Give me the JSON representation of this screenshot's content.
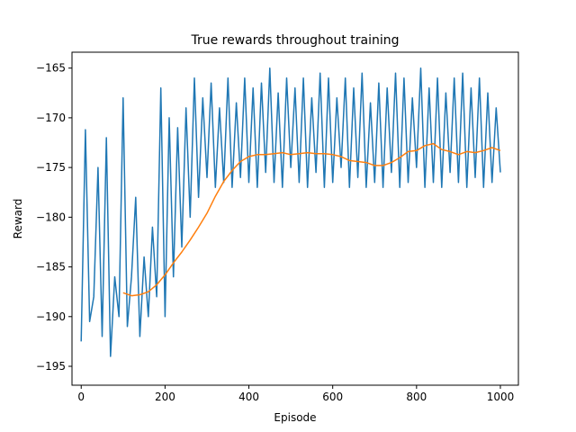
{
  "chart_data": {
    "type": "line",
    "title": "True rewards throughout training",
    "xlabel": "Episode",
    "ylabel": "Reward",
    "xlim": [
      -22,
      1043
    ],
    "ylim": [
      -196.9,
      -163.4
    ],
    "xticks": [
      0,
      200,
      400,
      600,
      800,
      1000
    ],
    "yticks": [
      -195,
      -190,
      -185,
      -180,
      -175,
      -170,
      -165
    ],
    "grid": false,
    "legend": "none",
    "series": [
      {
        "color": "#1f77b4",
        "note_values": "per-episode reward, sampled every 10 episodes (the raw trace oscillates heavily between these envelope points)",
        "x": [
          0,
          10,
          20,
          30,
          40,
          50,
          60,
          70,
          80,
          90,
          100,
          110,
          120,
          130,
          140,
          150,
          160,
          170,
          180,
          190,
          200,
          210,
          220,
          230,
          240,
          250,
          260,
          270,
          280,
          290,
          300,
          310,
          320,
          330,
          340,
          350,
          360,
          370,
          380,
          390,
          400,
          410,
          420,
          430,
          440,
          450,
          460,
          470,
          480,
          490,
          500,
          510,
          520,
          530,
          540,
          550,
          560,
          570,
          580,
          590,
          600,
          610,
          620,
          630,
          640,
          650,
          660,
          670,
          680,
          690,
          700,
          710,
          720,
          730,
          740,
          750,
          760,
          770,
          780,
          790,
          800,
          810,
          820,
          830,
          840,
          850,
          860,
          870,
          880,
          890,
          900,
          910,
          920,
          930,
          940,
          950,
          960,
          970,
          980,
          990,
          1000
        ],
        "y": [
          -192.5,
          -171.2,
          -190.5,
          -188.0,
          -175.0,
          -192.0,
          -172.0,
          -194.0,
          -186.0,
          -190.0,
          -168.0,
          -191.0,
          -186.0,
          -178.0,
          -192.0,
          -184.0,
          -190.0,
          -181.0,
          -188.0,
          -167.0,
          -190.0,
          -170.0,
          -186.0,
          -171.0,
          -183.0,
          -169.0,
          -180.0,
          -166.0,
          -178.0,
          -168.0,
          -176.0,
          -166.5,
          -177.0,
          -169.0,
          -176.5,
          -166.0,
          -177.0,
          -168.5,
          -176.0,
          -166.0,
          -176.5,
          -167.0,
          -177.0,
          -166.5,
          -175.5,
          -165.0,
          -176.5,
          -167.5,
          -177.0,
          -166.0,
          -175.0,
          -167.0,
          -176.5,
          -166.0,
          -177.0,
          -168.0,
          -175.5,
          -165.5,
          -177.0,
          -166.0,
          -176.5,
          -168.0,
          -175.0,
          -166.0,
          -177.0,
          -167.0,
          -176.0,
          -165.5,
          -177.0,
          -168.5,
          -176.5,
          -166.5,
          -177.0,
          -167.0,
          -175.5,
          -165.5,
          -177.0,
          -166.0,
          -176.5,
          -168.0,
          -175.0,
          -165.0,
          -177.0,
          -167.0,
          -176.5,
          -166.0,
          -177.0,
          -167.5,
          -175.5,
          -166.0,
          -176.5,
          -165.5,
          -177.0,
          -167.0,
          -176.0,
          -166.0,
          -177.0,
          -167.5,
          -176.5,
          -169.0,
          -175.5
        ]
      },
      {
        "color": "#ff7f0e",
        "note_values": "moving average",
        "x": [
          100,
          120,
          140,
          160,
          180,
          200,
          220,
          240,
          260,
          280,
          300,
          320,
          340,
          360,
          380,
          400,
          420,
          440,
          460,
          480,
          500,
          520,
          540,
          560,
          580,
          600,
          620,
          640,
          660,
          680,
          700,
          720,
          740,
          760,
          780,
          800,
          820,
          840,
          860,
          880,
          900,
          920,
          940,
          960,
          980,
          1000
        ],
        "y": [
          -187.6,
          -187.9,
          -187.8,
          -187.5,
          -186.8,
          -185.8,
          -184.6,
          -183.5,
          -182.3,
          -181.0,
          -179.6,
          -177.9,
          -176.4,
          -175.3,
          -174.4,
          -173.9,
          -173.7,
          -173.7,
          -173.6,
          -173.5,
          -173.7,
          -173.6,
          -173.5,
          -173.6,
          -173.6,
          -173.7,
          -173.9,
          -174.3,
          -174.4,
          -174.5,
          -174.8,
          -174.8,
          -174.5,
          -174.0,
          -173.4,
          -173.3,
          -172.8,
          -172.6,
          -173.2,
          -173.4,
          -173.7,
          -173.4,
          -173.5,
          -173.3,
          -173.0,
          -173.3
        ]
      }
    ]
  }
}
